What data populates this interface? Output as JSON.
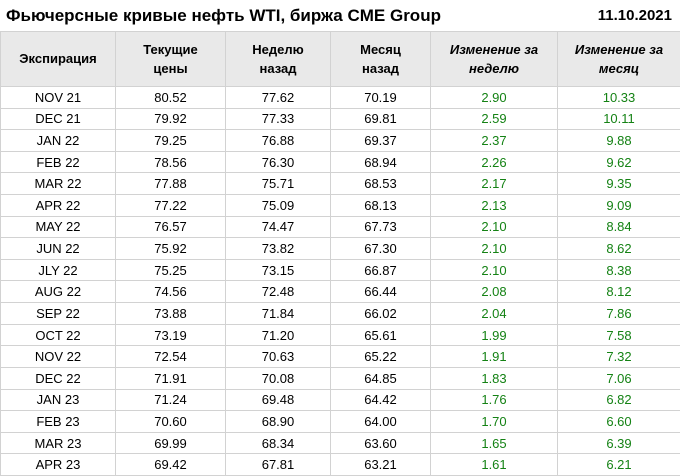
{
  "chart_data": {
    "type": "table",
    "title": "Фьючерсные кривые нефть WTI, биржа CME Group",
    "date": "11.10.2021",
    "columns": [
      "Экспирация",
      "Текущие\nцены",
      "Неделю\nназад",
      "Месяц\nназад",
      "Изменение за\nнеделю",
      "Изменение за\nмесяц"
    ],
    "column_names_flat": [
      "Экспирация",
      "Текущие цены",
      "Неделю назад",
      "Месяц назад",
      "Изменение за неделю",
      "Изменение за месяц"
    ],
    "rows": [
      [
        "NOV 21",
        "80.52",
        "77.62",
        "70.19",
        "2.90",
        "10.33"
      ],
      [
        "DEC 21",
        "79.92",
        "77.33",
        "69.81",
        "2.59",
        "10.11"
      ],
      [
        "JAN 22",
        "79.25",
        "76.88",
        "69.37",
        "2.37",
        "9.88"
      ],
      [
        "FEB 22",
        "78.56",
        "76.30",
        "68.94",
        "2.26",
        "9.62"
      ],
      [
        "MAR 22",
        "77.88",
        "75.71",
        "68.53",
        "2.17",
        "9.35"
      ],
      [
        "APR 22",
        "77.22",
        "75.09",
        "68.13",
        "2.13",
        "9.09"
      ],
      [
        "MAY 22",
        "76.57",
        "74.47",
        "67.73",
        "2.10",
        "8.84"
      ],
      [
        "JUN 22",
        "75.92",
        "73.82",
        "67.30",
        "2.10",
        "8.62"
      ],
      [
        "JLY 22",
        "75.25",
        "73.15",
        "66.87",
        "2.10",
        "8.38"
      ],
      [
        "AUG 22",
        "74.56",
        "72.48",
        "66.44",
        "2.08",
        "8.12"
      ],
      [
        "SEP 22",
        "73.88",
        "71.84",
        "66.02",
        "2.04",
        "7.86"
      ],
      [
        "OCT 22",
        "73.19",
        "71.20",
        "65.61",
        "1.99",
        "7.58"
      ],
      [
        "NOV 22",
        "72.54",
        "70.63",
        "65.22",
        "1.91",
        "7.32"
      ],
      [
        "DEC 22",
        "71.91",
        "70.08",
        "64.85",
        "1.83",
        "7.06"
      ],
      [
        "JAN 23",
        "71.24",
        "69.48",
        "64.42",
        "1.76",
        "6.82"
      ],
      [
        "FEB 23",
        "70.60",
        "68.90",
        "64.00",
        "1.70",
        "6.60"
      ],
      [
        "MAR 23",
        "69.99",
        "68.34",
        "63.60",
        "1.65",
        "6.39"
      ],
      [
        "APR 23",
        "69.42",
        "67.81",
        "63.21",
        "1.61",
        "6.21"
      ]
    ],
    "positive_change_color": "#148214",
    "header_bg_color": "#e9e9e9",
    "border_color": "#d2d2d2",
    "legend_position": "none",
    "grid": true
  }
}
